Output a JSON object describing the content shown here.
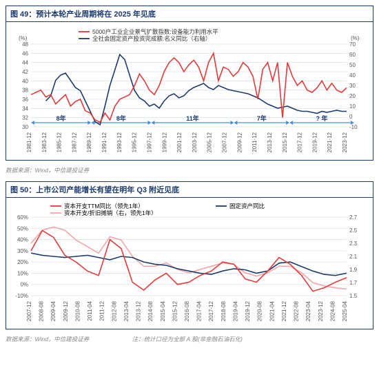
{
  "chart49": {
    "title": "图 49：预计本轮产业周期将在 2025 年见底",
    "type": "line",
    "legend": [
      {
        "label": "5000户工业企业景气扩散指数:设备能力利用水平",
        "color": "#e33a3a"
      },
      {
        "label": "全社会固定资产投资完成额:名义同比（右轴）",
        "color": "#1a3a6e"
      }
    ],
    "y_left": {
      "unit": "(%)",
      "min": 30,
      "max": 48,
      "step": 2,
      "color": "#555",
      "fontsize": 8
    },
    "y_right": {
      "unit": "(%)",
      "min": -10,
      "max": 70,
      "step": 10,
      "color": "#555",
      "fontsize": 8
    },
    "x_labels": [
      "1981-12",
      "1983-12",
      "1985-12",
      "1987-12",
      "1989-12",
      "1991-12",
      "1993-12",
      "1995-12",
      "1997-12",
      "1999-12",
      "2001-12",
      "2003-12",
      "2005-12",
      "2007-12",
      "2009-12",
      "2011-12",
      "2013-12",
      "2015-12",
      "2017-12",
      "2019-12",
      "2021-12",
      "2023-12"
    ],
    "x_label_fontsize": 8,
    "periods": [
      {
        "label": "8年",
        "from_idx": 0,
        "to_idx": 4
      },
      {
        "label": "8年",
        "from_idx": 4,
        "to_idx": 8
      },
      {
        "label": "11年",
        "from_idx": 8,
        "to_idx": 13.5
      },
      {
        "label": "7年",
        "from_idx": 13.5,
        "to_idx": 17.2
      },
      {
        "label": "? 年",
        "from_idx": 17.2,
        "to_idx": 21.5
      }
    ],
    "series_red": [
      37,
      37.5,
      38,
      36.5,
      37,
      35,
      36,
      37,
      34.5,
      35.5,
      36,
      33.5,
      33,
      31.5,
      31,
      33,
      31.5,
      34.5,
      36,
      36.5,
      37,
      39,
      41.5,
      40,
      38,
      37,
      39,
      42,
      44,
      45,
      44,
      42,
      43.5,
      44.5,
      43,
      40,
      44,
      46,
      40,
      43,
      42.5,
      41,
      42,
      44,
      43,
      41,
      36,
      42.5,
      44,
      40,
      44,
      32,
      44,
      41,
      39,
      40,
      38,
      37.5,
      38.5,
      40,
      38,
      39.5,
      38,
      37.5,
      38.5
    ],
    "series_blue": [
      null,
      null,
      null,
      15,
      20,
      35,
      40,
      42,
      35,
      28,
      25,
      15,
      5,
      -5,
      -8,
      10,
      30,
      45,
      60,
      55,
      40,
      25,
      18,
      15,
      10,
      12,
      8,
      15,
      20,
      22,
      18,
      20,
      25,
      28,
      30,
      32,
      28,
      26,
      30,
      28,
      26,
      25,
      24,
      23,
      22,
      20,
      18,
      15,
      12,
      10,
      8,
      9,
      10,
      8,
      6,
      5,
      5,
      4,
      3,
      5,
      4,
      5,
      6,
      5,
      5
    ],
    "background_color": "#ffffff",
    "grid_color": "#d9e2ec",
    "footnote": "数据来源：Wind，中信建投证券"
  },
  "chart50": {
    "title": "图 50：上市公司产能增长有望在明年 Q3 附近见底",
    "type": "line",
    "legend": [
      {
        "label": "资本开支TTM同比（领先1年）",
        "color": "#e33a3a"
      },
      {
        "label": "固定资产同比",
        "color": "#1a3a6e"
      },
      {
        "label": "资本开支/折旧摊销（右，领先1年）",
        "color": "#f2a6a6"
      }
    ],
    "y_left": {
      "min": -10,
      "max": 60,
      "step": 10,
      "unit": "%",
      "fontsize": 8
    },
    "y_right": {
      "min": 1.5,
      "max": 2.7,
      "step": 0.2,
      "fontsize": 8
    },
    "x_labels": [
      "2007-12",
      "2008-08",
      "2009-04",
      "2009-12",
      "2010-08",
      "2011-04",
      "2011-12",
      "2012-08",
      "2013-04",
      "2013-12",
      "2014-08",
      "2015-04",
      "2015-12",
      "2016-08",
      "2017-04",
      "2017-12",
      "2018-08",
      "2019-04",
      "2019-12",
      "2020-08",
      "2021-04",
      "2021-12",
      "2022-08",
      "2023-04",
      "2023-12",
      "2024-08",
      "2025-04"
    ],
    "x_label_fontsize": 8,
    "series_red": [
      30,
      48,
      42,
      26,
      20,
      12,
      8,
      40,
      32,
      2,
      -5,
      4,
      10,
      0,
      2,
      8,
      12,
      20,
      18,
      5,
      2,
      12,
      24,
      18,
      8,
      -6,
      -3,
      2,
      6
    ],
    "series_blue": [
      28,
      26,
      25,
      24,
      25,
      26,
      24,
      22,
      25,
      24,
      20,
      18,
      17,
      14,
      12,
      10,
      9,
      12,
      14,
      13,
      10,
      12,
      19,
      20,
      16,
      12,
      9,
      8,
      10
    ],
    "series_pink": [
      2.3,
      2.5,
      2.55,
      2.5,
      2.35,
      2.25,
      2.15,
      2.4,
      2.35,
      2.1,
      1.95,
      1.95,
      2.0,
      1.9,
      1.85,
      1.9,
      1.95,
      2.0,
      1.98,
      1.85,
      1.8,
      1.85,
      1.95,
      1.95,
      1.85,
      1.7,
      1.65,
      1.62,
      1.6
    ],
    "background_color": "#ffffff",
    "grid_color": "#d9e2ec",
    "footnote": "数据来源：Wind，中信建投证券",
    "footnote_add": "注：统计口径为全部 A 股(非金融石油石化)"
  }
}
